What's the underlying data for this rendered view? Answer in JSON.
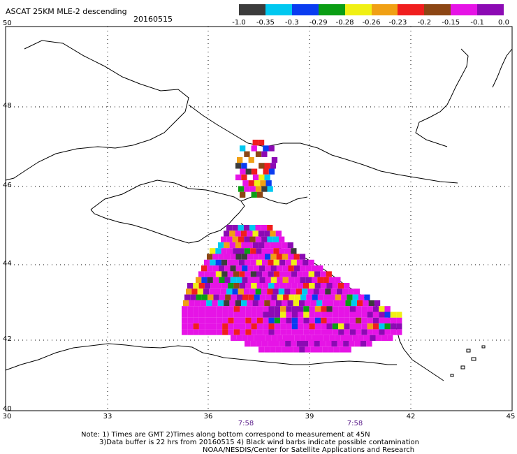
{
  "header": {
    "title": "ASCAT 25KM MLE-2 descending",
    "date": "20160515"
  },
  "legend": {
    "colors": [
      "#3c3c3c",
      "#00c8f0",
      "#0a3cf0",
      "#0a9e14",
      "#f0f014",
      "#f0a014",
      "#f01e1e",
      "#8c4614",
      "#e614e6",
      "#8c0ab4"
    ],
    "labels": [
      "-1.0",
      "-0.35",
      "-0.3",
      "-0.29",
      "-0.28",
      "-0.26",
      "-0.23",
      "-0.2",
      "-0.15",
      "-0.1",
      "0.0"
    ]
  },
  "axes": {
    "lat_labels": [
      "50",
      "48",
      "46",
      "44",
      "42",
      "40"
    ],
    "lon_labels": [
      "30",
      "33",
      "36",
      "39",
      "42",
      "45"
    ]
  },
  "times": [
    "7:58",
    "7:58"
  ],
  "notes": {
    "line1": "Note: 1) Times are GMT 2)Times along bottom correspond to measurement at 45N",
    "line2": "3)Data buffer is 22 hrs from 20160515 4) Black wind barbs indicate possible contamination",
    "line3": "NOAA/NESDIS/Center for Satellite Applications and Research"
  }
}
